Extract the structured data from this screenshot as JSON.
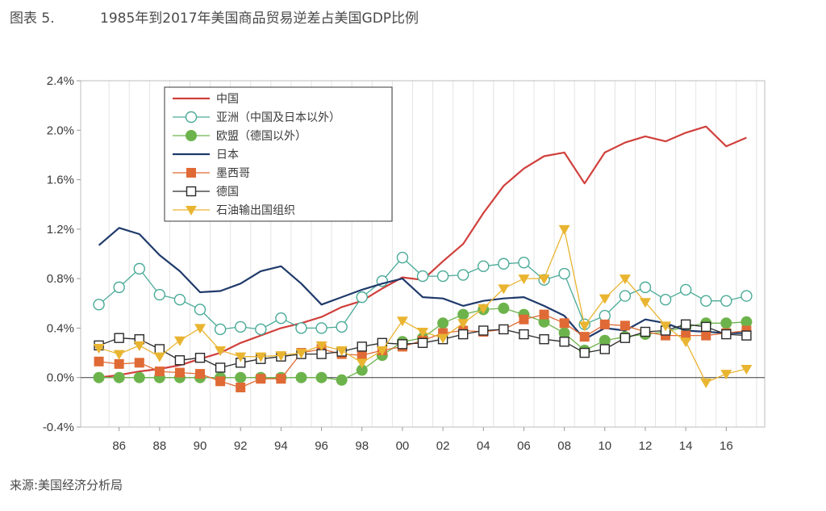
{
  "figure": {
    "number": "图表 5.",
    "title": "1985年到2017年美国商品贸易逆差占美国GDP比例",
    "source": "来源:美国经济分析局"
  },
  "chart_data": {
    "type": "line",
    "x": [
      1985,
      1986,
      1987,
      1988,
      1989,
      1990,
      1991,
      1992,
      1993,
      1994,
      1995,
      1996,
      1997,
      1998,
      1999,
      2000,
      2001,
      2002,
      2003,
      2004,
      2005,
      2006,
      2007,
      2008,
      2009,
      2010,
      2011,
      2012,
      2013,
      2014,
      2015,
      2016,
      2017
    ],
    "x_ticks": [
      1986,
      1988,
      1990,
      1992,
      1994,
      1996,
      1998,
      2000,
      2002,
      2004,
      2006,
      2008,
      2010,
      2012,
      2014,
      2016
    ],
    "x_tick_labels": [
      "86",
      "88",
      "90",
      "92",
      "94",
      "96",
      "98",
      "00",
      "02",
      "04",
      "06",
      "08",
      "10",
      "12",
      "14",
      "16"
    ],
    "xlim": [
      1984.1,
      2017.9
    ],
    "ylim": [
      -0.4,
      2.4
    ],
    "y_ticks": [
      -0.4,
      0.0,
      0.4,
      0.8,
      1.2,
      1.6,
      2.0,
      2.4
    ],
    "y_tick_labels": [
      "-0.4%",
      "0.0%",
      "0.4%",
      "0.8%",
      "1.2%",
      "1.6%",
      "2.0%",
      "2.4%"
    ],
    "grid": "vertical",
    "legend_position": "top-left",
    "series": [
      {
        "name": "中国",
        "color": "#d0403c",
        "marker": "none",
        "values": [
          0.0,
          0.02,
          0.05,
          0.07,
          0.1,
          0.15,
          0.2,
          0.28,
          0.34,
          0.4,
          0.44,
          0.49,
          0.57,
          0.62,
          0.72,
          0.81,
          0.79,
          0.94,
          1.08,
          1.33,
          1.55,
          1.69,
          1.79,
          1.82,
          1.57,
          1.82,
          1.9,
          1.95,
          1.91,
          1.98,
          2.03,
          1.87,
          1.94
        ]
      },
      {
        "name": "亚洲（中国及日本以外）",
        "color": "#4aaa97",
        "marker": "open-circle",
        "values": [
          0.59,
          0.73,
          0.88,
          0.67,
          0.63,
          0.55,
          0.39,
          0.41,
          0.39,
          0.48,
          0.4,
          0.4,
          0.41,
          0.65,
          0.78,
          0.97,
          0.82,
          0.82,
          0.83,
          0.9,
          0.92,
          0.93,
          0.79,
          0.84,
          0.43,
          0.5,
          0.66,
          0.73,
          0.63,
          0.71,
          0.62,
          0.62,
          0.66
        ]
      },
      {
        "name": "欧盟（德国以外）",
        "color": "#6db34c",
        "marker": "filled-circle",
        "values": [
          0.0,
          0.0,
          0.0,
          0.0,
          0.0,
          0.0,
          0.0,
          0.0,
          0.0,
          0.0,
          0.0,
          0.0,
          -0.02,
          0.06,
          0.18,
          0.29,
          0.32,
          0.44,
          0.51,
          0.55,
          0.56,
          0.51,
          0.45,
          0.36,
          0.22,
          0.3,
          0.33,
          0.35,
          0.37,
          0.41,
          0.44,
          0.44,
          0.45
        ]
      },
      {
        "name": "日本",
        "color": "#1f3a6b",
        "marker": "none",
        "values": [
          1.07,
          1.21,
          1.16,
          0.99,
          0.86,
          0.69,
          0.7,
          0.76,
          0.86,
          0.9,
          0.76,
          0.59,
          0.65,
          0.71,
          0.76,
          0.8,
          0.65,
          0.64,
          0.58,
          0.62,
          0.64,
          0.65,
          0.58,
          0.5,
          0.31,
          0.4,
          0.38,
          0.47,
          0.44,
          0.38,
          0.37,
          0.36,
          0.36
        ]
      },
      {
        "name": "墨西哥",
        "color": "#e06a35",
        "marker": "filled-square",
        "values": [
          0.13,
          0.11,
          0.12,
          0.05,
          0.04,
          0.03,
          -0.03,
          -0.08,
          -0.01,
          -0.01,
          0.2,
          0.23,
          0.19,
          0.18,
          0.22,
          0.25,
          0.3,
          0.36,
          0.38,
          0.37,
          0.39,
          0.47,
          0.51,
          0.44,
          0.33,
          0.43,
          0.42,
          0.37,
          0.34,
          0.34,
          0.34,
          0.36,
          0.38
        ]
      },
      {
        "name": "德国",
        "color": "#2a2a2a",
        "marker": "open-square",
        "values": [
          0.26,
          0.32,
          0.31,
          0.23,
          0.14,
          0.16,
          0.08,
          0.12,
          0.15,
          0.17,
          0.19,
          0.19,
          0.21,
          0.25,
          0.28,
          0.27,
          0.28,
          0.31,
          0.35,
          0.38,
          0.39,
          0.35,
          0.31,
          0.29,
          0.2,
          0.23,
          0.32,
          0.37,
          0.38,
          0.43,
          0.41,
          0.35,
          0.34
        ]
      },
      {
        "name": "石油输出国组织",
        "color": "#e9b531",
        "marker": "filled-triangle-down",
        "values": [
          0.24,
          0.19,
          0.26,
          0.17,
          0.3,
          0.4,
          0.22,
          0.17,
          0.17,
          0.18,
          0.2,
          0.26,
          0.22,
          0.12,
          0.22,
          0.46,
          0.37,
          0.32,
          0.44,
          0.56,
          0.72,
          0.8,
          0.8,
          1.2,
          0.42,
          0.64,
          0.8,
          0.61,
          0.42,
          0.29,
          -0.04,
          0.03,
          0.07
        ]
      }
    ]
  }
}
